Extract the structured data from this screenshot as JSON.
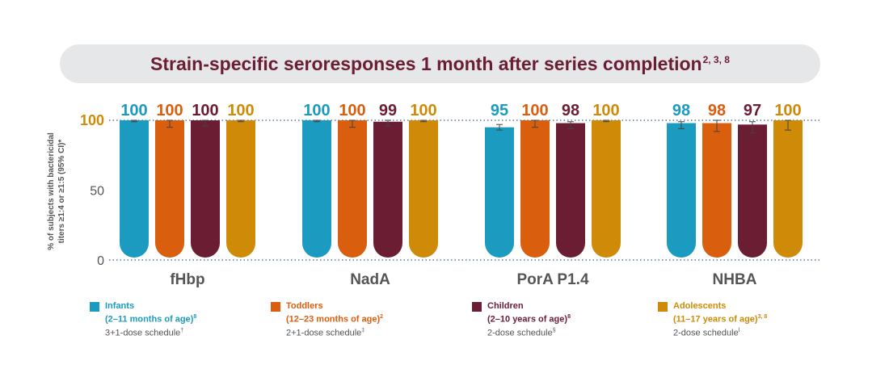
{
  "title": {
    "text": "Strain-specific seroresponses 1 month after series completion",
    "sup": "2, 3, 8"
  },
  "chart_data": {
    "type": "bar",
    "ylabel_line1": "% of subjects with bactericidal",
    "ylabel_line2": "titers ≥1:4 or ≥1:5 (95% CI)*",
    "yticks": [
      "0",
      "50",
      "100"
    ],
    "ylim": [
      0,
      100
    ],
    "categories": [
      "fHbp",
      "NadA",
      "PorA P1.4",
      "NHBA"
    ],
    "series": [
      {
        "name": "Infants",
        "color": "#1b9bbf",
        "values": [
          100,
          100,
          95,
          98
        ],
        "labels": [
          "100",
          "100",
          "95",
          "98"
        ],
        "ci_low": [
          99,
          99,
          93,
          94
        ],
        "ci_high": [
          100,
          100,
          97,
          99
        ]
      },
      {
        "name": "Toddlers",
        "color": "#d95f0e",
        "values": [
          100,
          100,
          100,
          98
        ],
        "labels": [
          "100",
          "100",
          "100",
          "98"
        ],
        "ci_low": [
          95,
          95,
          95,
          92
        ],
        "ci_high": [
          100,
          100,
          100,
          100
        ]
      },
      {
        "name": "Children",
        "color": "#6b1d34",
        "values": [
          100,
          99,
          98,
          97
        ],
        "labels": [
          "100",
          "99",
          "98",
          "97"
        ],
        "ci_low": [
          96,
          96,
          94,
          91
        ],
        "ci_high": [
          100,
          100,
          99,
          99
        ]
      },
      {
        "name": "Adolescents",
        "color": "#cf8a07",
        "values": [
          100,
          100,
          100,
          100
        ],
        "labels": [
          "100",
          "100",
          "100",
          "100"
        ],
        "ci_low": [
          99,
          99,
          99,
          93
        ],
        "ci_high": [
          100,
          100,
          100,
          100
        ]
      }
    ]
  },
  "legend": [
    {
      "name": "Infants",
      "age": "(2–11 months of age)",
      "age_sup": "8",
      "schedule": "3+1-dose schedule",
      "sched_sup": "†",
      "color": "#1b9bbf"
    },
    {
      "name": "Toddlers",
      "age": "(12–23 months of age)",
      "age_sup": "2",
      "schedule": "2+1-dose schedule",
      "sched_sup": "‡",
      "color": "#d95f0e"
    },
    {
      "name": "Children",
      "age": "(2–10 years of age)",
      "age_sup": "8",
      "schedule": "2-dose schedule",
      "sched_sup": "§",
      "color": "#6b1d34"
    },
    {
      "name": "Adolescents",
      "age": "(11–17 years of age)",
      "age_sup": "3, 8",
      "schedule": "2-dose schedule",
      "sched_sup": "ǀ",
      "color": "#cf8a07"
    }
  ]
}
